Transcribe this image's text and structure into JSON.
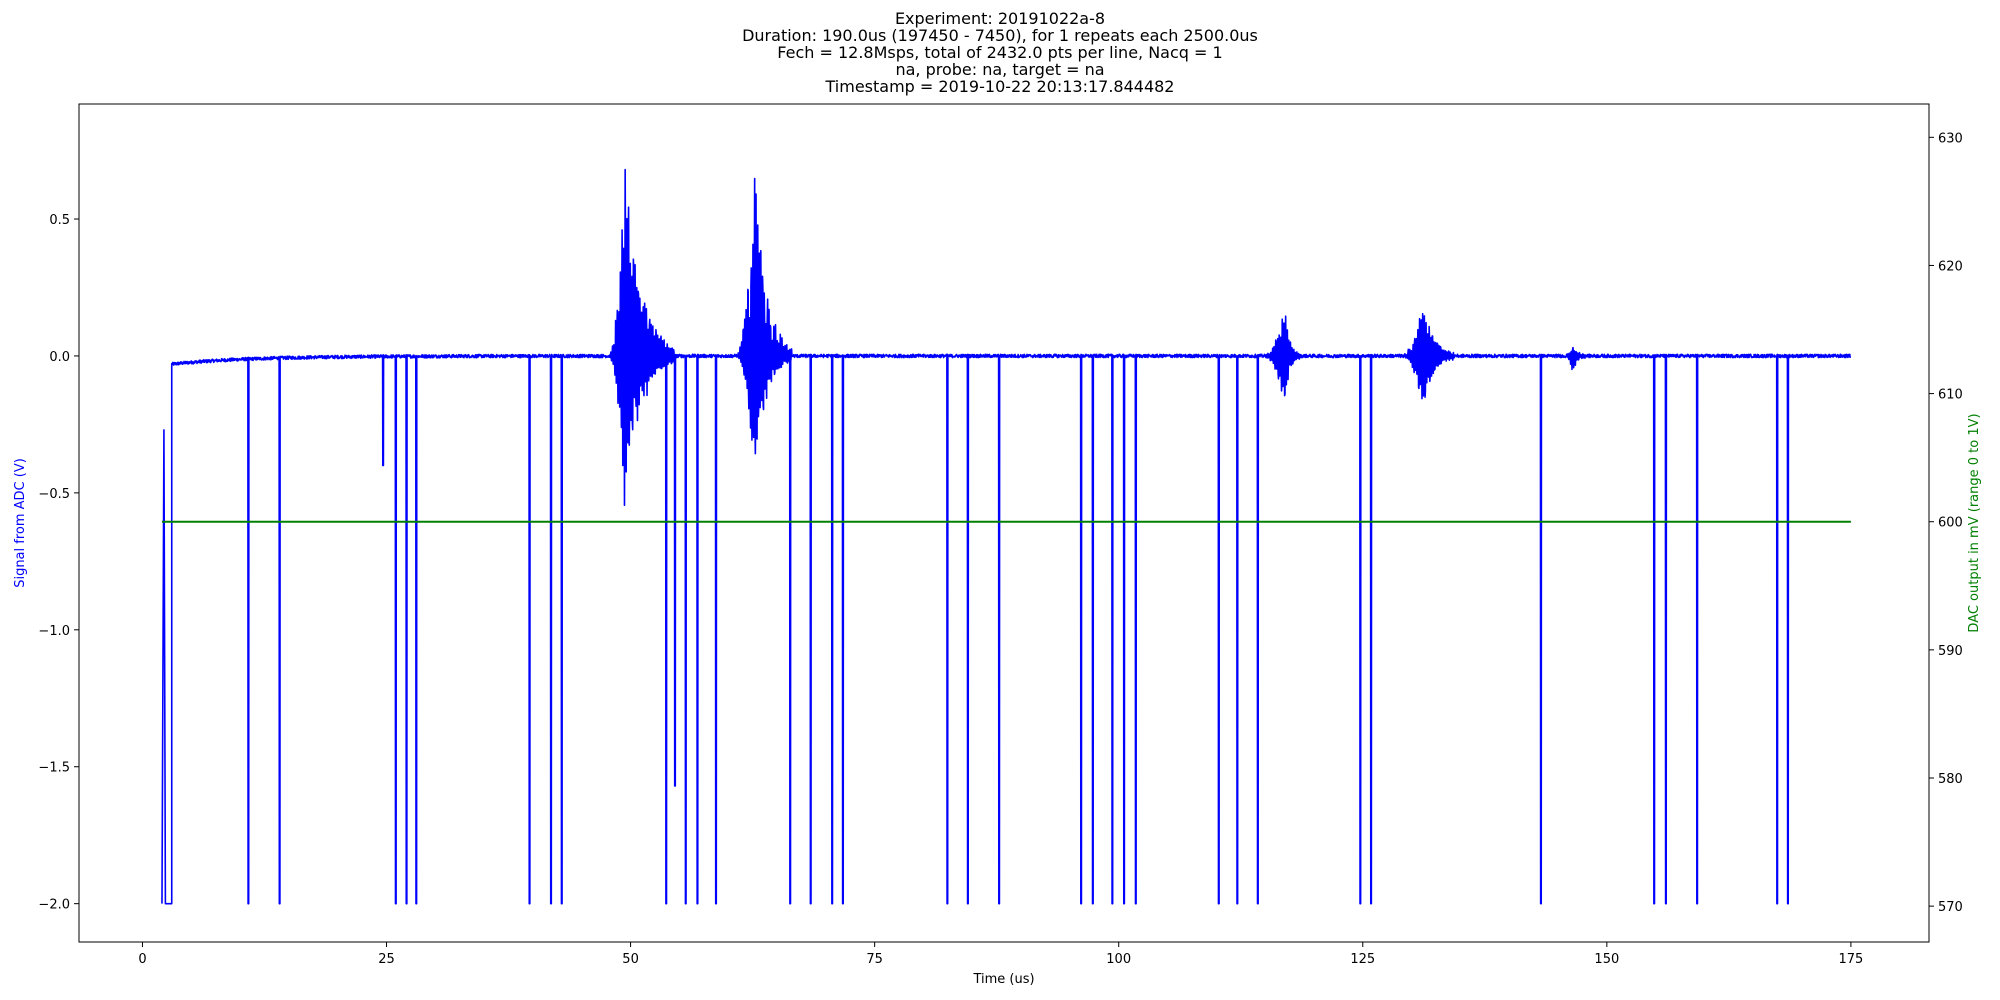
{
  "title_lines": [
    "Experiment: 20191022a-8",
    "Duration: 190.0us (197450 - 7450), for 1 repeats each 2500.0us",
    "Fech = 12.8Msps, total of 2432.0 pts per line, Nacq = 1",
    "na, probe: na, target = na",
    "Timestamp = 2019-10-22 20:13:17.844482"
  ],
  "chart_data": {
    "type": "line",
    "xlabel": "Time (us)",
    "ylabel_left": "Signal from ADC (V)",
    "ylabel_right": "DAC output in mV (range 0 to 1V)",
    "xlim": [
      -6.5,
      183
    ],
    "ylim_left": [
      -2.14,
      0.92
    ],
    "ylim_right": [
      567.2,
      632.6
    ],
    "x_ticks": [
      0,
      25,
      50,
      75,
      100,
      125,
      150,
      175
    ],
    "y_ticks_left": [
      0.5,
      0.0,
      -0.5,
      -1.0,
      -1.5,
      -2.0
    ],
    "y_tick_labels_left": [
      "0.5",
      "0.0",
      "−0.5",
      "−1.0",
      "−1.5",
      "−2.0"
    ],
    "y_ticks_right": [
      570,
      580,
      590,
      600,
      610,
      620,
      630
    ],
    "grid": false,
    "legend": "none",
    "colors": {
      "adc": "#0000ff",
      "dac": "#008000",
      "left_label": "#0000ff",
      "right_label": "#008000"
    },
    "series": [
      {
        "axis": "left",
        "baseline_start": {
          "x": 3.0,
          "y": -0.03
        },
        "baseline_end": {
          "x": 175.0,
          "y": 0.0
        },
        "x_end": 175.0,
        "initial_pulse": {
          "x_start": 2.0,
          "x_end": 3.0,
          "y": -2.0,
          "spike_x": 2.2,
          "spike_y": -0.27
        },
        "negative_spikes": [
          {
            "x": 10.8,
            "y": -2.0
          },
          {
            "x": 14.0,
            "y": -2.0
          },
          {
            "x": 24.6,
            "y": -0.4
          },
          {
            "x": 25.9,
            "y": -2.0
          },
          {
            "x": 27.0,
            "y": -2.0
          },
          {
            "x": 28.0,
            "y": -2.0
          },
          {
            "x": 39.6,
            "y": -2.0
          },
          {
            "x": 41.8,
            "y": -2.0
          },
          {
            "x": 42.9,
            "y": -2.0
          },
          {
            "x": 53.6,
            "y": -2.0
          },
          {
            "x": 54.5,
            "y": -1.57
          },
          {
            "x": 55.6,
            "y": -2.0
          },
          {
            "x": 56.8,
            "y": -2.0
          },
          {
            "x": 58.7,
            "y": -2.0
          },
          {
            "x": 66.3,
            "y": -2.0
          },
          {
            "x": 68.4,
            "y": -2.0
          },
          {
            "x": 70.6,
            "y": -2.0
          },
          {
            "x": 71.7,
            "y": -2.0
          },
          {
            "x": 82.4,
            "y": -2.0
          },
          {
            "x": 84.5,
            "y": -2.0
          },
          {
            "x": 87.7,
            "y": -2.0
          },
          {
            "x": 96.1,
            "y": -2.0
          },
          {
            "x": 97.3,
            "y": -2.0
          },
          {
            "x": 99.3,
            "y": -2.0
          },
          {
            "x": 100.5,
            "y": -2.0
          },
          {
            "x": 101.7,
            "y": -2.0
          },
          {
            "x": 110.2,
            "y": -2.0
          },
          {
            "x": 112.1,
            "y": -2.0
          },
          {
            "x": 114.2,
            "y": -2.0
          },
          {
            "x": 124.7,
            "y": -2.0
          },
          {
            "x": 125.8,
            "y": -2.0
          },
          {
            "x": 143.2,
            "y": -2.0
          },
          {
            "x": 154.8,
            "y": -2.0
          },
          {
            "x": 156.0,
            "y": -2.0
          },
          {
            "x": 159.2,
            "y": -2.0
          },
          {
            "x": 167.4,
            "y": -2.0
          },
          {
            "x": 168.5,
            "y": -2.0
          }
        ],
        "bursts": [
          {
            "x_start": 47.8,
            "x_end": 54.5,
            "x_peak": 49.4,
            "y_max": 0.78,
            "y_min": -0.59
          },
          {
            "x_start": 60.8,
            "x_end": 66.5,
            "x_peak": 62.7,
            "y_max": 0.71,
            "y_min": -0.45
          },
          {
            "x_start": 115.0,
            "x_end": 118.5,
            "x_peak": 117.0,
            "y_max": 0.2,
            "y_min": -0.2
          },
          {
            "x_start": 129.0,
            "x_end": 134.5,
            "x_peak": 131.2,
            "y_max": 0.21,
            "y_min": -0.21
          },
          {
            "x_start": 145.8,
            "x_end": 148.0,
            "x_peak": 146.5,
            "y_max": 0.04,
            "y_min": -0.07
          }
        ]
      },
      {
        "axis": "right",
        "x": [
          2.0,
          175.0
        ],
        "y": [
          600,
          600
        ]
      }
    ]
  }
}
